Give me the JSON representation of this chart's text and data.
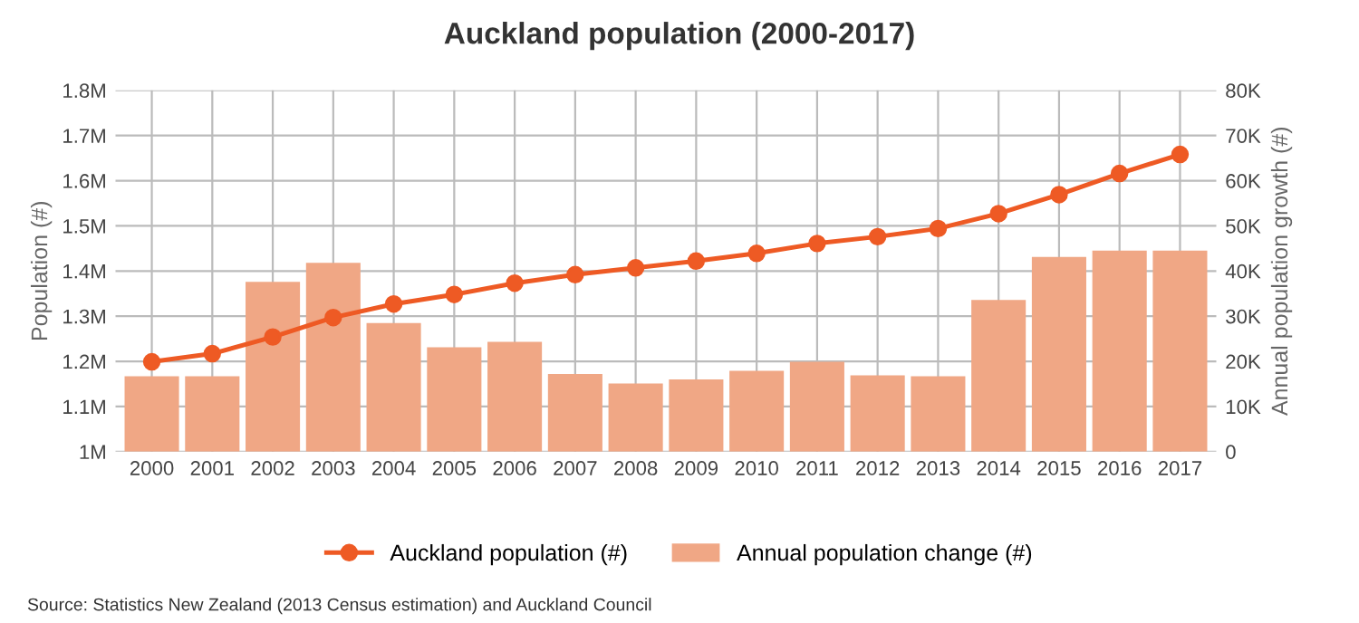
{
  "chart_data": {
    "type": "bar",
    "title": "Auckland population (2000-2017)",
    "ylabel": "Population (#)",
    "y2label": "Annual population growth (#)",
    "categories": [
      "2000",
      "2001",
      "2002",
      "2003",
      "2004",
      "2005",
      "2006",
      "2007",
      "2008",
      "2009",
      "2010",
      "2011",
      "2012",
      "2013",
      "2014",
      "2015",
      "2016",
      "2017"
    ],
    "series": [
      {
        "name": "Auckland population (#)",
        "type": "line",
        "color": "#ee5a24",
        "marker": "circle",
        "values": [
          1199000,
          1217000,
          1254000,
          1297000,
          1327000,
          1348000,
          1373000,
          1392000,
          1407000,
          1422000,
          1439000,
          1461000,
          1476000,
          1494000,
          1527000,
          1569000,
          1616000,
          1658000
        ]
      },
      {
        "name": "Annual population change (#)",
        "axis": "y2",
        "color": "#f0a785",
        "values": [
          16700,
          16700,
          37600,
          41800,
          28500,
          23100,
          24300,
          17200,
          15100,
          16000,
          17900,
          19900,
          16900,
          16700,
          33600,
          43100,
          44500,
          44500
        ]
      }
    ],
    "ylim": [
      1000000,
      1800000
    ],
    "yticks": [
      {
        "value": 1000000,
        "label": "1M"
      },
      {
        "value": 1100000,
        "label": "1.1M"
      },
      {
        "value": 1200000,
        "label": "1.2M"
      },
      {
        "value": 1300000,
        "label": "1.3M"
      },
      {
        "value": 1400000,
        "label": "1.4M"
      },
      {
        "value": 1500000,
        "label": "1.5M"
      },
      {
        "value": 1600000,
        "label": "1.6M"
      },
      {
        "value": 1700000,
        "label": "1.7M"
      },
      {
        "value": 1800000,
        "label": "1.8M"
      }
    ],
    "y2lim": [
      0,
      80000
    ],
    "y2ticks": [
      0,
      {
        "value": 10000,
        "label": "10K"
      },
      {
        "value": 20000,
        "label": "20K"
      },
      {
        "value": 30000,
        "label": "30K"
      },
      {
        "value": 40000,
        "label": "40K"
      },
      {
        "value": 50000,
        "label": "50K"
      },
      {
        "value": 60000,
        "label": "60K"
      },
      {
        "value": 70000,
        "label": "70K"
      },
      {
        "value": 80000,
        "label": "80K"
      }
    ],
    "grid": true,
    "legend": "bottom",
    "annotations": [
      "Source: Statistics New Zealand (2013 Census estimation) and Auckland Council"
    ]
  }
}
